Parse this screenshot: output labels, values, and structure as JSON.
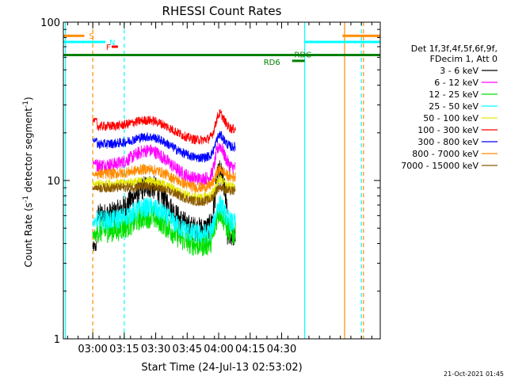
{
  "chart_data": {
    "type": "line",
    "title": "RHESSI Count Rates",
    "xlabel": "Start Time (24-Jul-13 02:53:02)",
    "ylabel_main": "Count Rate (s",
    "ylabel_sup1": "-1",
    "ylabel_mid": " detector segment",
    "ylabel_sup2": "-1",
    "ylabel_end": ")",
    "y_scale": "log",
    "ylim": [
      1,
      100
    ],
    "y_ticks": [
      {
        "v": 1,
        "label": "1"
      },
      {
        "v": 10,
        "label": "10"
      },
      {
        "v": 100,
        "label": "100"
      }
    ],
    "xlim_min": [
      -7,
      144
    ],
    "x_ticks": [
      {
        "min": 7,
        "label": "03:00"
      },
      {
        "min": 22,
        "label": "03:15"
      },
      {
        "min": 37,
        "label": "03:30"
      },
      {
        "min": 52,
        "label": "03:45"
      },
      {
        "min": 67,
        "label": "04:00"
      },
      {
        "min": 82,
        "label": "04:15"
      },
      {
        "min": 97,
        "label": "04:30"
      }
    ],
    "legend_header": [
      "Det 1f,3f,4f,5f,6f,9f,",
      "FDecim 1, Att 0"
    ],
    "legend_position": "right, outside plot",
    "series": [
      {
        "name": "3 - 6 keV",
        "color": "#000000"
      },
      {
        "name": "6 - 12 keV",
        "color": "#ff00ff"
      },
      {
        "name": "12 - 25 keV",
        "color": "#00e000"
      },
      {
        "name": "25 - 50 keV",
        "color": "#00ffff"
      },
      {
        "name": "50 - 100 keV",
        "color": "#e6e600"
      },
      {
        "name": "100 - 300 keV",
        "color": "#ff0000"
      },
      {
        "name": "300 - 800 keV",
        "color": "#0000ff"
      },
      {
        "name": "800 - 7000 keV",
        "color": "#ff8c00"
      },
      {
        "name": "7000 - 15000 keV",
        "color": "#8b5a00"
      }
    ],
    "data_window_min": [
      7,
      75
    ],
    "flag_bars": [
      {
        "label": "S",
        "color": "#ff8c00",
        "level": 82,
        "ranges": [
          [
            -7,
            3
          ],
          [
            126,
            144
          ]
        ]
      },
      {
        "label": "N",
        "color": "#00ffff",
        "level": 75,
        "ranges": [
          [
            -7,
            13
          ],
          [
            108,
            144
          ]
        ]
      },
      {
        "label": "F",
        "color": "#ff0000",
        "level": 70,
        "ranges": [
          [
            16,
            19
          ]
        ]
      },
      {
        "label": "",
        "color": "#008000",
        "level": 62,
        "ranges": [
          [
            -7,
            144
          ]
        ]
      },
      {
        "label": "RD6",
        "color": "#008000",
        "level": 57,
        "ranges": [
          [
            102,
            108
          ]
        ]
      },
      {
        "label": "RDC",
        "color": "#008000",
        "level": 62,
        "ranges": []
      }
    ],
    "vlines": [
      {
        "min": -6,
        "color": "#00ffff",
        "style": "solid"
      },
      {
        "min": 7,
        "color": "#ff8c00",
        "style": "dashed"
      },
      {
        "min": 22,
        "color": "#00ffff",
        "style": "dashed"
      },
      {
        "min": 108,
        "color": "#00ffff",
        "style": "solid"
      },
      {
        "min": 127,
        "color": "#ff8c00",
        "style": "solid"
      },
      {
        "min": 135,
        "color": "#00ffff",
        "style": "dashed"
      },
      {
        "min": 136,
        "color": "#ff8c00",
        "style": "dashed"
      }
    ],
    "grid": false
  },
  "footer": {
    "timestamp": "21-Oct-2021 01:45"
  }
}
